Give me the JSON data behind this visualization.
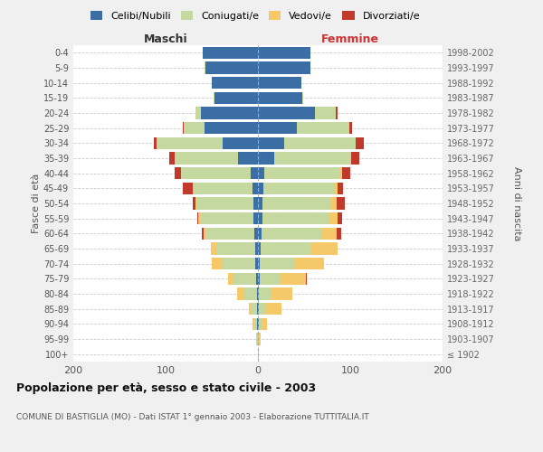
{
  "age_groups": [
    "100+",
    "95-99",
    "90-94",
    "85-89",
    "80-84",
    "75-79",
    "70-74",
    "65-69",
    "60-64",
    "55-59",
    "50-54",
    "45-49",
    "40-44",
    "35-39",
    "30-34",
    "25-29",
    "20-24",
    "15-19",
    "10-14",
    "5-9",
    "0-4"
  ],
  "birth_years": [
    "≤ 1902",
    "1903-1907",
    "1908-1912",
    "1913-1917",
    "1918-1922",
    "1923-1927",
    "1928-1932",
    "1933-1937",
    "1938-1942",
    "1943-1947",
    "1948-1952",
    "1953-1957",
    "1958-1962",
    "1963-1967",
    "1968-1972",
    "1973-1977",
    "1978-1982",
    "1983-1987",
    "1988-1992",
    "1993-1997",
    "1998-2002"
  ],
  "colors": {
    "celibi": "#3a6ea5",
    "coniugati": "#c5d8a0",
    "vedovi": "#f5c96a",
    "divorziati": "#c0392b"
  },
  "males": {
    "celibi": [
      0,
      0,
      1,
      1,
      1,
      2,
      3,
      3,
      4,
      5,
      5,
      6,
      8,
      22,
      38,
      58,
      62,
      47,
      50,
      57,
      60
    ],
    "coniugati": [
      0,
      1,
      3,
      6,
      14,
      24,
      35,
      42,
      52,
      58,
      62,
      65,
      75,
      68,
      72,
      22,
      6,
      1,
      0,
      1,
      0
    ],
    "vedovi": [
      0,
      1,
      2,
      3,
      8,
      6,
      12,
      6,
      3,
      2,
      1,
      0,
      0,
      0,
      0,
      0,
      0,
      0,
      0,
      0,
      0
    ],
    "divorziati": [
      0,
      0,
      0,
      0,
      0,
      0,
      0,
      0,
      2,
      1,
      3,
      10,
      7,
      6,
      3,
      1,
      0,
      0,
      0,
      0,
      0
    ]
  },
  "females": {
    "celibi": [
      0,
      0,
      1,
      1,
      1,
      2,
      2,
      3,
      4,
      5,
      5,
      6,
      7,
      18,
      28,
      42,
      62,
      48,
      47,
      57,
      57
    ],
    "coniugati": [
      0,
      1,
      3,
      8,
      14,
      22,
      38,
      55,
      65,
      72,
      74,
      76,
      82,
      82,
      78,
      57,
      22,
      1,
      0,
      0,
      0
    ],
    "vedovi": [
      1,
      2,
      6,
      16,
      22,
      28,
      32,
      28,
      16,
      9,
      6,
      4,
      2,
      1,
      0,
      0,
      0,
      0,
      0,
      0,
      0
    ],
    "divorziati": [
      0,
      0,
      0,
      0,
      0,
      1,
      0,
      0,
      5,
      5,
      9,
      6,
      9,
      9,
      9,
      3,
      2,
      0,
      0,
      0,
      0
    ]
  },
  "xlim": [
    -200,
    200
  ],
  "xticks": [
    -200,
    -100,
    0,
    100,
    200
  ],
  "title": "Popolazione per età, sesso e stato civile - 2003",
  "subtitle": "COMUNE DI BASTIGLIA (MO) - Dati ISTAT 1° gennaio 2003 - Elaborazione TUTTITALIA.IT",
  "ylabel_left": "Fasce di età",
  "ylabel_right": "Anni di nascita",
  "xlabel_maschi": "Maschi",
  "xlabel_femmine": "Femmine",
  "bg_color": "#f0f0f0",
  "plot_bg": "#ffffff",
  "bar_height": 0.8
}
